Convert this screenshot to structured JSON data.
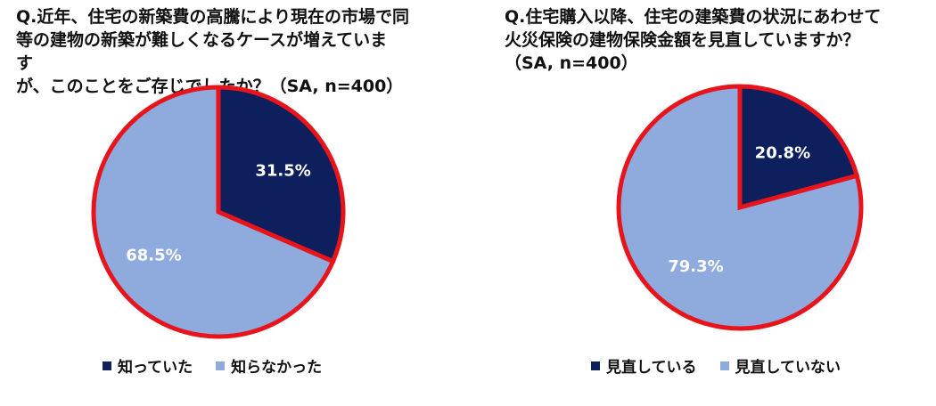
{
  "chart_data": [
    {
      "type": "pie",
      "title": "Q.近年、住宅の新築費の高騰により現在の市場で同\n等の建物の新築が難しくなるケースが増えていま\nす\nが、このことをご存じでしたか？（SA, n=400）",
      "slices": [
        {
          "label": "知っていた",
          "value": 31.5,
          "value_label": "31.5%",
          "color": "#0d1f5c"
        },
        {
          "label": "知らなかった",
          "value": 68.5,
          "value_label": "68.5%",
          "color": "#8faadc"
        }
      ],
      "border_color": "#e8141b",
      "legend_position": "bottom"
    },
    {
      "type": "pie",
      "title": "Q.住宅購入以降、住宅の建築費の状況にあわせて\n火災保険の建物保険金額を見直していますか？\n（SA, n=400）",
      "slices": [
        {
          "label": "見直している",
          "value": 20.8,
          "value_label": "20.8%",
          "color": "#0d1f5c"
        },
        {
          "label": "見直していない",
          "value": 79.3,
          "value_label": "79.3%",
          "color": "#8faadc"
        }
      ],
      "border_color": "#e8141b",
      "legend_position": "bottom"
    }
  ]
}
